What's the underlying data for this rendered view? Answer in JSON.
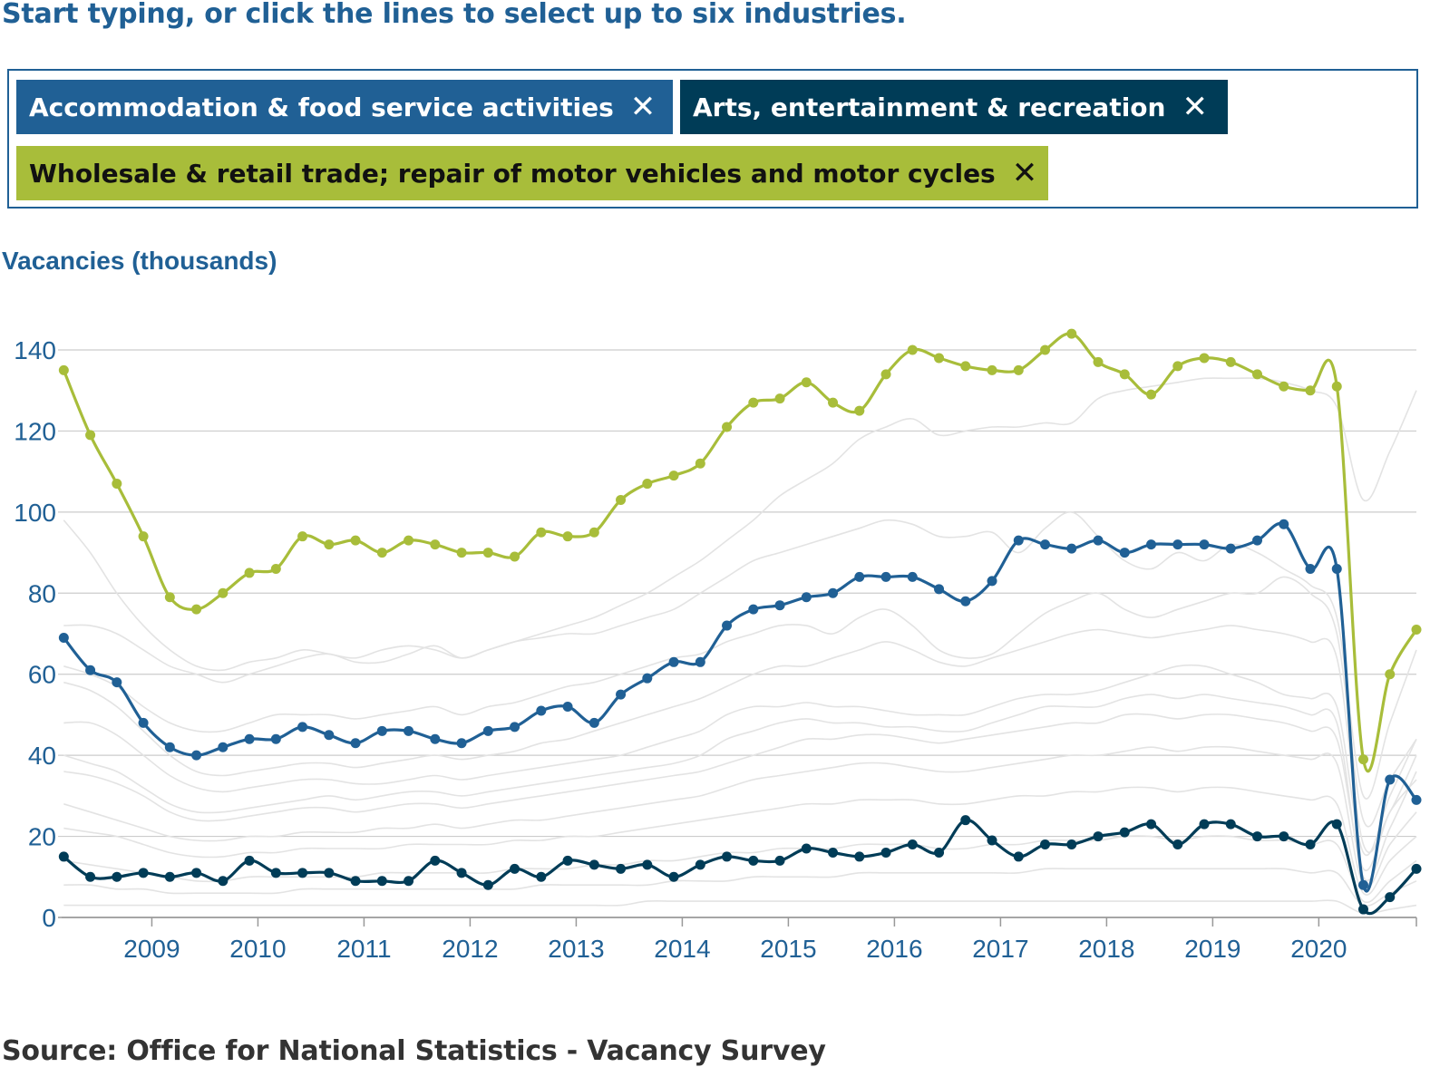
{
  "instruction": "Start typing, or click the lines to select up to six industries.",
  "selected": [
    {
      "label": "Accommodation & food service activities",
      "remove_glyph": "✕"
    },
    {
      "label": "Arts, entertainment & recreation",
      "remove_glyph": "✕"
    },
    {
      "label": "Wholesale & retail trade; repair of motor vehicles and motor cycles",
      "remove_glyph": "✕"
    }
  ],
  "colors": {
    "accent": "#206095",
    "accommodation": "#206095",
    "arts": "#003c57",
    "wholesale": "#a8bd3a",
    "background_lines": "#e3e3e3",
    "grid": "#cccccc"
  },
  "source": "Source: Office for National Statistics - Vacancy Survey",
  "chart_data": {
    "type": "line",
    "ylabel": "Vacancies (thousands)",
    "xlabel": "",
    "ylim": [
      0,
      145
    ],
    "yticks": [
      0,
      20,
      40,
      60,
      80,
      100,
      120,
      140
    ],
    "xlim": [
      2008.15,
      2020.92
    ],
    "xticks": [
      "2009",
      "2010",
      "2011",
      "2012",
      "2013",
      "2014",
      "2015",
      "2016",
      "2017",
      "2018",
      "2019",
      "2020"
    ],
    "grid": true,
    "x": [
      2008.17,
      2008.42,
      2008.67,
      2008.92,
      2009.17,
      2009.42,
      2009.67,
      2009.92,
      2010.17,
      2010.42,
      2010.67,
      2010.92,
      2011.17,
      2011.42,
      2011.67,
      2011.92,
      2012.17,
      2012.42,
      2012.67,
      2012.92,
      2013.17,
      2013.42,
      2013.67,
      2013.92,
      2014.17,
      2014.42,
      2014.67,
      2014.92,
      2015.17,
      2015.42,
      2015.67,
      2015.92,
      2016.17,
      2016.42,
      2016.67,
      2016.92,
      2017.17,
      2017.42,
      2017.67,
      2017.92,
      2018.17,
      2018.42,
      2018.67,
      2018.92,
      2019.17,
      2019.42,
      2019.67,
      2019.92,
      2020.17,
      2020.42,
      2020.67,
      2020.92
    ],
    "series": [
      {
        "name": "Wholesale & retail trade; repair of motor vehicles and motor cycles",
        "color_key": "wholesale",
        "values": [
          135,
          119,
          107,
          94,
          79,
          76,
          80,
          85,
          86,
          94,
          92,
          93,
          90,
          93,
          92,
          90,
          90,
          89,
          95,
          94,
          95,
          103,
          107,
          109,
          112,
          121,
          127,
          128,
          132,
          127,
          125,
          134,
          140,
          138,
          136,
          135,
          135,
          140,
          144,
          137,
          134,
          129,
          136,
          138,
          137,
          134,
          131,
          130,
          131,
          39,
          60,
          71
        ]
      },
      {
        "name": "Accommodation & food service activities",
        "color_key": "accommodation",
        "values": [
          69,
          61,
          58,
          48,
          42,
          40,
          42,
          44,
          44,
          47,
          45,
          43,
          46,
          46,
          44,
          43,
          46,
          47,
          51,
          52,
          48,
          55,
          59,
          63,
          63,
          72,
          76,
          77,
          79,
          80,
          84,
          84,
          84,
          81,
          78,
          83,
          93,
          92,
          91,
          93,
          90,
          92,
          92,
          92,
          91,
          93,
          97,
          86,
          86,
          8,
          34,
          29
        ]
      },
      {
        "name": "Arts, entertainment & recreation",
        "color_key": "arts",
        "values": [
          15,
          10,
          10,
          11,
          10,
          11,
          9,
          14,
          11,
          11,
          11,
          9,
          9,
          9,
          14,
          11,
          8,
          12,
          10,
          14,
          13,
          12,
          13,
          10,
          13,
          15,
          14,
          14,
          17,
          16,
          15,
          16,
          18,
          16,
          24,
          19,
          15,
          18,
          18,
          20,
          21,
          23,
          18,
          23,
          23,
          20,
          20,
          18,
          23,
          2,
          5,
          12
        ]
      }
    ],
    "background_series": [
      [
        98,
        90,
        80,
        72,
        66,
        62,
        61,
        63,
        64,
        66,
        65,
        64,
        66,
        67,
        66,
        64,
        66,
        68,
        70,
        72,
        74,
        77,
        80,
        84,
        88,
        93,
        98,
        104,
        108,
        112,
        118,
        121,
        123,
        119,
        120,
        121,
        121,
        122,
        122,
        128,
        130,
        131,
        132,
        133,
        133,
        133,
        132,
        130,
        126,
        103,
        115,
        130
      ],
      [
        72,
        72,
        70,
        66,
        62,
        60,
        58,
        60,
        62,
        64,
        65,
        63,
        63,
        65,
        67,
        64,
        66,
        68,
        69,
        70,
        70,
        72,
        74,
        76,
        80,
        84,
        88,
        90,
        92,
        94,
        96,
        98,
        97,
        94,
        94,
        95,
        90,
        96,
        100,
        94,
        88,
        86,
        90,
        88,
        92,
        90,
        86,
        82,
        74,
        30,
        48,
        66
      ],
      [
        62,
        60,
        57,
        52,
        48,
        46,
        46,
        48,
        50,
        50,
        50,
        49,
        50,
        51,
        52,
        50,
        52,
        53,
        55,
        57,
        58,
        60,
        62,
        64,
        65,
        68,
        70,
        72,
        72,
        70,
        74,
        76,
        72,
        66,
        64,
        65,
        70,
        75,
        78,
        80,
        76,
        74,
        76,
        78,
        80,
        80,
        84,
        80,
        70,
        24,
        34,
        44
      ],
      [
        58,
        56,
        52,
        46,
        40,
        36,
        35,
        36,
        37,
        38,
        38,
        37,
        38,
        39,
        40,
        39,
        40,
        41,
        43,
        44,
        46,
        48,
        50,
        52,
        54,
        57,
        60,
        62,
        62,
        64,
        66,
        68,
        66,
        63,
        62,
        64,
        66,
        68,
        70,
        71,
        70,
        69,
        70,
        71,
        72,
        71,
        70,
        68,
        64,
        18,
        26,
        40
      ],
      [
        48,
        48,
        45,
        40,
        35,
        32,
        31,
        32,
        33,
        34,
        34,
        33,
        33,
        34,
        35,
        34,
        35,
        36,
        37,
        38,
        39,
        40,
        42,
        44,
        46,
        50,
        52,
        52,
        53,
        52,
        52,
        51,
        50,
        50,
        50,
        52,
        54,
        55,
        55,
        56,
        58,
        60,
        62,
        62,
        60,
        58,
        55,
        54,
        52,
        16,
        30,
        44
      ],
      [
        40,
        38,
        36,
        32,
        28,
        26,
        26,
        27,
        28,
        29,
        30,
        29,
        30,
        31,
        31,
        30,
        31,
        32,
        33,
        34,
        35,
        36,
        37,
        38,
        40,
        44,
        46,
        48,
        49,
        48,
        48,
        47,
        47,
        46,
        46,
        48,
        50,
        52,
        52,
        52,
        54,
        55,
        54,
        55,
        54,
        53,
        52,
        50,
        48,
        10,
        22,
        36
      ],
      [
        36,
        35,
        33,
        30,
        26,
        24,
        24,
        25,
        26,
        27,
        27,
        26,
        27,
        28,
        28,
        27,
        28,
        29,
        30,
        31,
        32,
        33,
        34,
        35,
        36,
        38,
        40,
        42,
        44,
        44,
        45,
        45,
        44,
        43,
        44,
        45,
        46,
        47,
        48,
        48,
        50,
        50,
        49,
        50,
        50,
        49,
        48,
        46,
        44,
        12,
        26,
        34
      ],
      [
        28,
        26,
        24,
        22,
        20,
        19,
        19,
        20,
        20,
        21,
        21,
        21,
        22,
        22,
        23,
        22,
        23,
        24,
        24,
        25,
        26,
        27,
        28,
        29,
        30,
        32,
        34,
        35,
        36,
        37,
        38,
        38,
        37,
        36,
        36,
        37,
        38,
        39,
        40,
        40,
        41,
        42,
        41,
        42,
        42,
        41,
        40,
        39,
        38,
        8,
        18,
        26
      ],
      [
        22,
        21,
        20,
        18,
        16,
        15,
        15,
        16,
        16,
        17,
        17,
        17,
        17,
        18,
        18,
        18,
        18,
        19,
        19,
        20,
        20,
        21,
        22,
        23,
        24,
        25,
        26,
        27,
        28,
        28,
        29,
        29,
        29,
        28,
        28,
        29,
        30,
        30,
        31,
        31,
        32,
        32,
        31,
        32,
        32,
        31,
        30,
        29,
        28,
        6,
        14,
        20
      ],
      [
        14,
        13,
        12,
        11,
        10,
        9,
        9,
        10,
        10,
        10,
        10,
        10,
        11,
        11,
        11,
        11,
        11,
        12,
        12,
        12,
        13,
        13,
        14,
        14,
        15,
        16,
        16,
        17,
        17,
        17,
        18,
        18,
        18,
        17,
        17,
        18,
        18,
        19,
        19,
        19,
        20,
        20,
        19,
        20,
        20,
        19,
        19,
        18,
        18,
        4,
        9,
        14
      ],
      [
        8,
        8,
        7,
        7,
        6,
        6,
        6,
        6,
        6,
        7,
        7,
        7,
        7,
        7,
        7,
        7,
        7,
        7,
        8,
        8,
        8,
        8,
        8,
        9,
        9,
        9,
        10,
        10,
        10,
        10,
        11,
        11,
        11,
        11,
        11,
        11,
        11,
        12,
        12,
        12,
        12,
        12,
        12,
        12,
        12,
        12,
        12,
        11,
        11,
        3,
        6,
        9
      ],
      [
        3,
        3,
        3,
        3,
        3,
        3,
        3,
        3,
        3,
        3,
        3,
        3,
        3,
        3,
        3,
        3,
        3,
        3,
        3,
        3,
        3,
        3,
        4,
        4,
        4,
        4,
        4,
        4,
        4,
        4,
        4,
        4,
        4,
        4,
        4,
        4,
        4,
        4,
        4,
        4,
        4,
        4,
        4,
        4,
        4,
        4,
        4,
        4,
        4,
        1,
        2,
        3
      ]
    ]
  }
}
